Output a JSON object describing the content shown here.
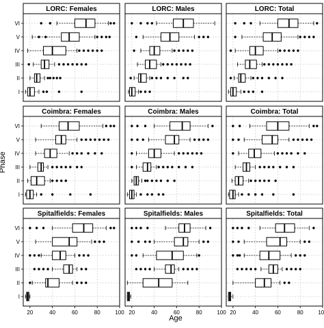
{
  "chart_data": {
    "type": "boxplot",
    "xlabel": "Age",
    "ylabel": "Phase",
    "x_ticks": [
      20,
      40,
      60,
      80,
      100
    ],
    "xlim": [
      14,
      100
    ],
    "grid": true,
    "phases": [
      "I",
      "II",
      "III",
      "IV",
      "V",
      "VI"
    ],
    "panels": [
      {
        "title": "LORC: Females",
        "boxes": [
          {
            "phase": "I",
            "whisker_low": 16,
            "q1": 18,
            "median": 20,
            "q3": 24,
            "whisker_high": 28,
            "outliers": [
              32,
              35,
              46,
              66
            ]
          },
          {
            "phase": "II",
            "whisker_low": 20,
            "q1": 24,
            "median": 26,
            "q3": 29,
            "whisker_high": 33,
            "outliers": [
              36,
              38,
              41,
              44,
              47
            ]
          },
          {
            "phase": "III",
            "whisker_low": 23,
            "q1": 30,
            "median": 33,
            "q3": 37,
            "whisker_high": 42,
            "outliers": [
              19,
              46,
              50,
              54,
              58,
              62,
              66,
              70
            ]
          },
          {
            "phase": "IV",
            "whisker_low": 18,
            "q1": 32,
            "median": 40,
            "q3": 52,
            "whisker_high": 62,
            "outliers": [
              64,
              68,
              72,
              76,
              80,
              84
            ]
          },
          {
            "phase": "V",
            "whisker_low": 22,
            "q1": 48,
            "median": 55,
            "q3": 64,
            "whisker_high": 78,
            "outliers": [
              28,
              34,
              80,
              84,
              88,
              91
            ]
          },
          {
            "phase": "VI",
            "whisker_low": 44,
            "q1": 60,
            "median": 70,
            "q3": 78,
            "whisker_high": 90,
            "outliers": [
              30,
              38,
              92,
              95
            ]
          }
        ]
      },
      {
        "title": "LORC: Males",
        "boxes": [
          {
            "phase": "I",
            "whisker_low": 17,
            "q1": 18,
            "median": 20,
            "q3": 23,
            "whisker_high": 26,
            "outliers": [
              28,
              32,
              36
            ]
          },
          {
            "phase": "II",
            "whisker_low": 22,
            "q1": 26,
            "median": 28,
            "q3": 33,
            "whisker_high": 36,
            "outliers": [
              19,
              38,
              42,
              46,
              52,
              58,
              66,
              70
            ]
          },
          {
            "phase": "III",
            "whisker_low": 25,
            "q1": 32,
            "median": 36,
            "q3": 42,
            "whisker_high": 46,
            "outliers": [
              48,
              52,
              56,
              60,
              64,
              68,
              72
            ]
          },
          {
            "phase": "IV",
            "whisker_low": 28,
            "q1": 36,
            "median": 40,
            "q3": 45,
            "whisker_high": 56,
            "outliers": [
              22,
              58,
              62,
              66,
              70,
              74
            ]
          },
          {
            "phase": "V",
            "whisker_low": 30,
            "q1": 46,
            "median": 54,
            "q3": 62,
            "whisker_high": 76,
            "outliers": [
              24,
              80,
              84,
              88
            ]
          },
          {
            "phase": "VI",
            "whisker_low": 42,
            "q1": 57,
            "median": 66,
            "q3": 75,
            "whisker_high": 94,
            "outliers": [
              20,
              28,
              34,
              38
            ]
          }
        ]
      },
      {
        "title": "LORC: Total",
        "boxes": [
          {
            "phase": "I",
            "whisker_low": 16,
            "q1": 18,
            "median": 20,
            "q3": 23,
            "whisker_high": 27,
            "outliers": [
              30,
              34,
              38,
              46
            ]
          },
          {
            "phase": "II",
            "whisker_low": 21,
            "q1": 25,
            "median": 27,
            "q3": 31,
            "whisker_high": 36,
            "outliers": [
              18,
              38,
              42,
              46,
              52,
              58,
              64
            ]
          },
          {
            "phase": "III",
            "whisker_low": 24,
            "q1": 31,
            "median": 35,
            "q3": 41,
            "whisker_high": 46,
            "outliers": [
              48,
              52,
              56,
              60,
              64,
              68,
              72
            ]
          },
          {
            "phase": "IV",
            "whisker_low": 22,
            "q1": 35,
            "median": 40,
            "q3": 47,
            "whisker_high": 60,
            "outliers": [
              18,
              62,
              66,
              70,
              74,
              78
            ]
          },
          {
            "phase": "V",
            "whisker_low": 28,
            "q1": 47,
            "median": 55,
            "q3": 63,
            "whisker_high": 78,
            "outliers": [
              22,
              80,
              84,
              88,
              92
            ]
          },
          {
            "phase": "VI",
            "whisker_low": 44,
            "q1": 60,
            "median": 70,
            "q3": 78,
            "whisker_high": 92,
            "outliers": [
              22,
              30,
              36,
              95
            ]
          }
        ]
      },
      {
        "title": "Coimbra: Females",
        "boxes": [
          {
            "phase": "I",
            "whisker_low": 16,
            "q1": 17,
            "median": 20,
            "q3": 23,
            "whisker_high": 26,
            "outliers": [
              30,
              40,
              56,
              74
            ]
          },
          {
            "phase": "II",
            "whisker_low": 18,
            "q1": 21,
            "median": 26,
            "q3": 33,
            "whisker_high": 38,
            "outliers": [
              40,
              44,
              48,
              52
            ]
          },
          {
            "phase": "III",
            "whisker_low": 20,
            "q1": 27,
            "median": 30,
            "q3": 32,
            "whisker_high": 36,
            "outliers": [
              40,
              44,
              48,
              52,
              56,
              62,
              66
            ]
          },
          {
            "phase": "IV",
            "whisker_low": 25,
            "q1": 33,
            "median": 38,
            "q3": 44,
            "whisker_high": 55,
            "outliers": [
              58,
              62,
              66,
              72,
              78,
              84
            ]
          },
          {
            "phase": "V",
            "whisker_low": 25,
            "q1": 43,
            "median": 48,
            "q3": 52,
            "whisker_high": 62,
            "outliers": [
              66,
              70,
              74,
              78,
              82,
              86,
              90
            ]
          },
          {
            "phase": "VI",
            "whisker_low": 30,
            "q1": 46,
            "median": 54,
            "q3": 64,
            "whisker_high": 85,
            "outliers": [
              88,
              92,
              95
            ]
          }
        ]
      },
      {
        "title": "Coimbra: Males",
        "boxes": [
          {
            "phase": "I",
            "whisker_low": 16,
            "q1": 18,
            "median": 20,
            "q3": 22,
            "whisker_high": 24,
            "outliers": [
              28,
              34,
              38,
              44,
              48
            ]
          },
          {
            "phase": "II",
            "whisker_low": 20,
            "q1": 22,
            "median": 24,
            "q3": 26,
            "whisker_high": 29,
            "outliers": [
              32,
              34,
              38,
              42,
              46,
              52,
              58
            ]
          },
          {
            "phase": "III",
            "whisker_low": 24,
            "q1": 30,
            "median": 34,
            "q3": 37,
            "whisker_high": 42,
            "outliers": [
              20,
              44,
              48,
              52,
              56,
              62,
              68,
              74
            ]
          },
          {
            "phase": "IV",
            "whisker_low": 24,
            "q1": 35,
            "median": 40,
            "q3": 46,
            "whisker_high": 58,
            "outliers": [
              20,
              62,
              66,
              70,
              74,
              78,
              82
            ]
          },
          {
            "phase": "V",
            "whisker_low": 35,
            "q1": 50,
            "median": 58,
            "q3": 62,
            "whisker_high": 72,
            "outliers": [
              20,
              25,
              30,
              76,
              80,
              84,
              88
            ]
          },
          {
            "phase": "VI",
            "whisker_low": 40,
            "q1": 54,
            "median": 65,
            "q3": 72,
            "whisker_high": 88,
            "outliers": [
              20,
              25,
              32,
              92
            ]
          }
        ]
      },
      {
        "title": "Coimbra: Total",
        "boxes": [
          {
            "phase": "I",
            "whisker_low": 16,
            "q1": 17,
            "median": 20,
            "q3": 22,
            "whisker_high": 25,
            "outliers": [
              28,
              34,
              40,
              46,
              56,
              74
            ]
          },
          {
            "phase": "II",
            "whisker_low": 19,
            "q1": 22,
            "median": 25,
            "q3": 29,
            "whisker_high": 34,
            "outliers": [
              36,
              40,
              44,
              48,
              52,
              58
            ]
          },
          {
            "phase": "III",
            "whisker_low": 22,
            "q1": 29,
            "median": 32,
            "q3": 35,
            "whisker_high": 40,
            "outliers": [
              44,
              48,
              52,
              56,
              62,
              68,
              74
            ]
          },
          {
            "phase": "IV",
            "whisker_low": 25,
            "q1": 34,
            "median": 39,
            "q3": 45,
            "whisker_high": 57,
            "outliers": [
              20,
              60,
              64,
              68,
              72,
              78,
              84
            ]
          },
          {
            "phase": "V",
            "whisker_low": 30,
            "q1": 46,
            "median": 55,
            "q3": 60,
            "whisker_high": 70,
            "outliers": [
              20,
              25,
              74,
              78,
              82,
              86,
              90
            ]
          },
          {
            "phase": "VI",
            "whisker_low": 35,
            "q1": 50,
            "median": 60,
            "q3": 70,
            "whisker_high": 88,
            "outliers": [
              20,
              26,
              92,
              95
            ]
          }
        ]
      },
      {
        "title": "Spitalfields: Females",
        "boxes": [
          {
            "phase": "I",
            "whisker_low": 16,
            "q1": 17,
            "median": 18,
            "q3": 19,
            "whisker_high": 20,
            "outliers": []
          },
          {
            "phase": "II",
            "whisker_low": 22,
            "q1": 34,
            "median": 36,
            "q3": 46,
            "whisker_high": 58,
            "outliers": [
              20,
              62,
              66,
              70
            ]
          },
          {
            "phase": "III",
            "whisker_low": 40,
            "q1": 50,
            "median": 55,
            "q3": 58,
            "whisker_high": 62,
            "outliers": [
              24,
              28,
              32,
              36,
              66,
              70
            ]
          },
          {
            "phase": "IV",
            "whisker_low": 30,
            "q1": 40,
            "median": 47,
            "q3": 52,
            "whisker_high": 60,
            "outliers": [
              20,
              24,
              28,
              64,
              68,
              72
            ]
          },
          {
            "phase": "V",
            "whisker_low": 25,
            "q1": 40,
            "median": 55,
            "q3": 62,
            "whisker_high": 75,
            "outliers": [
              78,
              82,
              86
            ]
          },
          {
            "phase": "VI",
            "whisker_low": 40,
            "q1": 58,
            "median": 68,
            "q3": 76,
            "whisker_high": 88,
            "outliers": [
              20,
              26,
              32,
              92,
              95
            ]
          }
        ]
      },
      {
        "title": "Spitalfields: Males",
        "boxes": [
          {
            "phase": "I",
            "whisker_low": 16,
            "q1": 16,
            "median": 17,
            "q3": 18,
            "whisker_high": 19,
            "outliers": []
          },
          {
            "phase": "II",
            "whisker_low": 16,
            "q1": 30,
            "median": 44,
            "q3": 56,
            "whisker_high": 70,
            "outliers": []
          },
          {
            "phase": "III",
            "whisker_low": 40,
            "q1": 50,
            "median": 55,
            "q3": 58,
            "whisker_high": 62,
            "outliers": [
              24,
              28,
              32,
              36,
              66,
              70,
              74,
              78
            ]
          },
          {
            "phase": "IV",
            "whisker_low": 30,
            "q1": 42,
            "median": 56,
            "q3": 66,
            "whisker_high": 78,
            "outliers": [
              20,
              24,
              80
            ]
          },
          {
            "phase": "V",
            "whisker_low": 40,
            "q1": 58,
            "median": 66,
            "q3": 70,
            "whisker_high": 80,
            "outliers": [
              20,
              26,
              32,
              36,
              84,
              88
            ]
          },
          {
            "phase": "VI",
            "whisker_low": 50,
            "q1": 62,
            "median": 67,
            "q3": 72,
            "whisker_high": 86,
            "outliers": [
              20,
              24,
              28,
              34,
              90
            ]
          }
        ]
      },
      {
        "title": "Spitalfields: Total",
        "boxes": [
          {
            "phase": "I",
            "whisker_low": 16,
            "q1": 16,
            "median": 17,
            "q3": 18,
            "whisker_high": 20,
            "outliers": []
          },
          {
            "phase": "II",
            "whisker_low": 20,
            "q1": 40,
            "median": 48,
            "q3": 54,
            "whisker_high": 62,
            "outliers": [
              66,
              70
            ]
          },
          {
            "phase": "III",
            "whisker_low": 45,
            "q1": 52,
            "median": 56,
            "q3": 60,
            "whisker_high": 64,
            "outliers": [
              24,
              28,
              32,
              36,
              40,
              68,
              72,
              76,
              80
            ]
          },
          {
            "phase": "IV",
            "whisker_low": 30,
            "q1": 44,
            "median": 52,
            "q3": 62,
            "whisker_high": 72,
            "outliers": [
              20,
              24,
              26,
              76,
              80,
              84
            ]
          },
          {
            "phase": "V",
            "whisker_low": 30,
            "q1": 50,
            "median": 62,
            "q3": 68,
            "whisker_high": 80,
            "outliers": [
              20,
              25,
              84,
              88
            ]
          },
          {
            "phase": "VI",
            "whisker_low": 44,
            "q1": 58,
            "median": 66,
            "q3": 75,
            "whisker_high": 88,
            "outliers": [
              20,
              24,
              28,
              34,
              92
            ]
          }
        ]
      }
    ]
  }
}
